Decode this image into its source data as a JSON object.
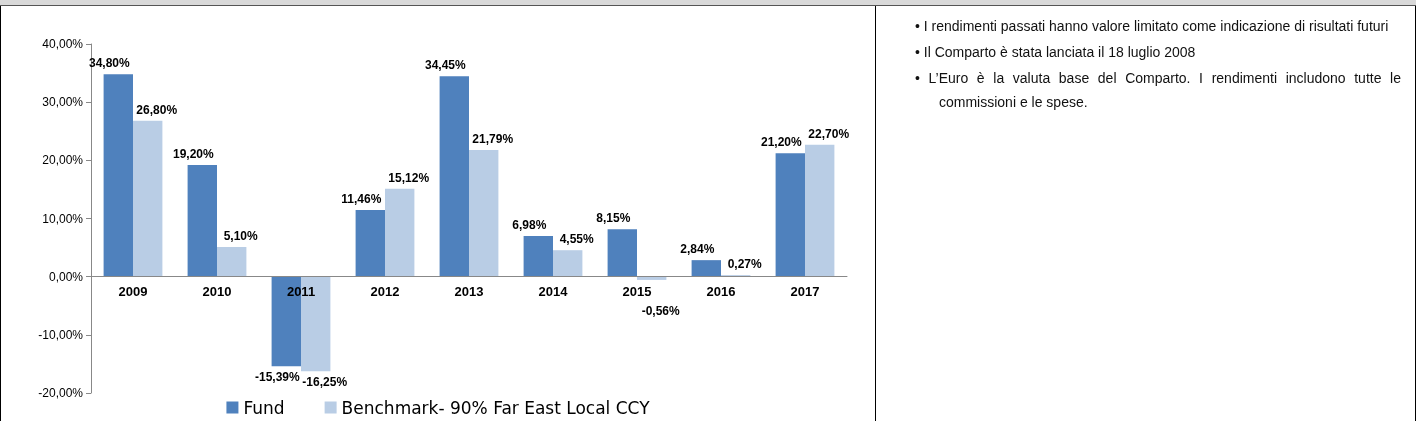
{
  "chart_data": {
    "type": "bar",
    "categories": [
      "2009",
      "2010",
      "2011",
      "2012",
      "2013",
      "2014",
      "2015",
      "2016",
      "2017"
    ],
    "series": [
      {
        "name": "Fund",
        "color": "#4f81bd",
        "values": [
          34.8,
          19.2,
          -15.39,
          11.46,
          34.45,
          6.98,
          8.15,
          2.84,
          21.2
        ],
        "value_labels": [
          "34,80%",
          "19,20%",
          "-15,39%",
          "11,46%",
          "34,45%",
          "6,98%",
          "8,15%",
          "2,84%",
          "21,20%"
        ]
      },
      {
        "name": "Benchmark- 90% Far East Local CCY",
        "color": "#b9cde5",
        "values": [
          26.8,
          5.1,
          -16.25,
          15.12,
          21.79,
          4.55,
          -0.56,
          0.27,
          22.7
        ],
        "value_labels": [
          "26,80%",
          "5,10%",
          "-16,25%",
          "15,12%",
          "21,79%",
          "4,55%",
          "-0,56%",
          "0,27%",
          "22,70%"
        ]
      }
    ],
    "ylim": [
      -20,
      40
    ],
    "yticks": [
      {
        "value": -20,
        "label": "-20,00%"
      },
      {
        "value": -10,
        "label": "-10,00%"
      },
      {
        "value": 0,
        "label": "0,00%"
      },
      {
        "value": 10,
        "label": "10,00%"
      },
      {
        "value": 20,
        "label": "20,00%"
      },
      {
        "value": 30,
        "label": "30,00%"
      },
      {
        "value": 40,
        "label": "40,00%"
      }
    ],
    "grid": false,
    "legend": "bottom",
    "annotations": [
      "• I rendimenti passati hanno valore limitato come indicazione di risultati futuri",
      "• Il Comparto è stata lanciata il 18 luglio 2008",
      "• L’Euro è la valuta base del Comparto. I rendimenti includono tutte le commissioni e le spese."
    ]
  }
}
